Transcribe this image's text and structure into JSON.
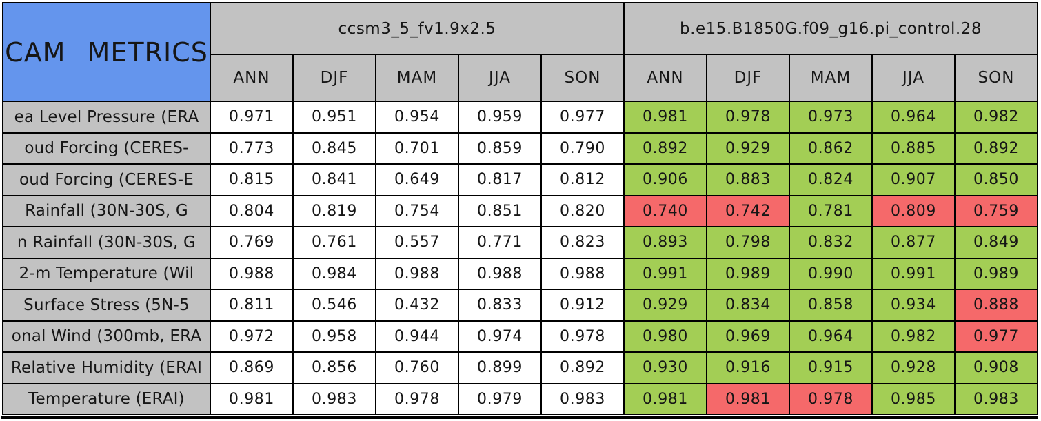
{
  "chart_data": {
    "type": "table",
    "title": "CAM METRICS",
    "column_groups": [
      "ccsm3_5_fv1.9x2.5",
      "b.e15.B1850G.f09_g16.pi_control.28"
    ],
    "seasons": [
      "ANN",
      "DJF",
      "MAM",
      "JJA",
      "SON"
    ],
    "rows": [
      {
        "label": "ea Level Pressure (ERA",
        "model1": [
          "0.971",
          "0.951",
          "0.954",
          "0.959",
          "0.977"
        ],
        "model2": [
          "0.981",
          "0.978",
          "0.973",
          "0.964",
          "0.982"
        ],
        "model2_status": [
          "good",
          "good",
          "good",
          "good",
          "good"
        ]
      },
      {
        "label": "oud Forcing (CERES-",
        "model1": [
          "0.773",
          "0.845",
          "0.701",
          "0.859",
          "0.790"
        ],
        "model2": [
          "0.892",
          "0.929",
          "0.862",
          "0.885",
          "0.892"
        ],
        "model2_status": [
          "good",
          "good",
          "good",
          "good",
          "good"
        ]
      },
      {
        "label": "oud Forcing (CERES-E",
        "model1": [
          "0.815",
          "0.841",
          "0.649",
          "0.817",
          "0.812"
        ],
        "model2": [
          "0.906",
          "0.883",
          "0.824",
          "0.907",
          "0.850"
        ],
        "model2_status": [
          "good",
          "good",
          "good",
          "good",
          "good"
        ]
      },
      {
        "label": "Rainfall (30N-30S, G",
        "model1": [
          "0.804",
          "0.819",
          "0.754",
          "0.851",
          "0.820"
        ],
        "model2": [
          "0.740",
          "0.742",
          "0.781",
          "0.809",
          "0.759"
        ],
        "model2_status": [
          "bad",
          "bad",
          "good",
          "bad",
          "bad"
        ]
      },
      {
        "label": "n Rainfall (30N-30S, G",
        "model1": [
          "0.769",
          "0.761",
          "0.557",
          "0.771",
          "0.823"
        ],
        "model2": [
          "0.893",
          "0.798",
          "0.832",
          "0.877",
          "0.849"
        ],
        "model2_status": [
          "good",
          "good",
          "good",
          "good",
          "good"
        ]
      },
      {
        "label": "2-m Temperature (Wil",
        "model1": [
          "0.988",
          "0.984",
          "0.988",
          "0.988",
          "0.988"
        ],
        "model2": [
          "0.991",
          "0.989",
          "0.990",
          "0.991",
          "0.989"
        ],
        "model2_status": [
          "good",
          "good",
          "good",
          "good",
          "good"
        ]
      },
      {
        "label": "Surface Stress (5N-5",
        "model1": [
          "0.811",
          "0.546",
          "0.432",
          "0.833",
          "0.912"
        ],
        "model2": [
          "0.929",
          "0.834",
          "0.858",
          "0.934",
          "0.888"
        ],
        "model2_status": [
          "good",
          "good",
          "good",
          "good",
          "bad"
        ]
      },
      {
        "label": "onal Wind (300mb, ERA",
        "model1": [
          "0.972",
          "0.958",
          "0.944",
          "0.974",
          "0.978"
        ],
        "model2": [
          "0.980",
          "0.969",
          "0.964",
          "0.982",
          "0.977"
        ],
        "model2_status": [
          "good",
          "good",
          "good",
          "good",
          "bad"
        ]
      },
      {
        "label": "Relative Humidity (ERAI",
        "model1": [
          "0.869",
          "0.856",
          "0.760",
          "0.899",
          "0.892"
        ],
        "model2": [
          "0.930",
          "0.916",
          "0.915",
          "0.928",
          "0.908"
        ],
        "model2_status": [
          "good",
          "good",
          "good",
          "good",
          "good"
        ]
      },
      {
        "label": "Temperature (ERAI)",
        "model1": [
          "0.981",
          "0.983",
          "0.978",
          "0.979",
          "0.983"
        ],
        "model2": [
          "0.981",
          "0.981",
          "0.978",
          "0.985",
          "0.983"
        ],
        "model2_status": [
          "good",
          "bad",
          "bad",
          "good",
          "good"
        ]
      }
    ]
  },
  "colors": {
    "title_bg": "#6495ED",
    "header_bg": "#C2C2C2",
    "model1_cell_bg": "#FFFFFF",
    "cell_good": "#A3CE55",
    "cell_bad": "#F5696A",
    "border": "#000000",
    "text": "#161616"
  }
}
